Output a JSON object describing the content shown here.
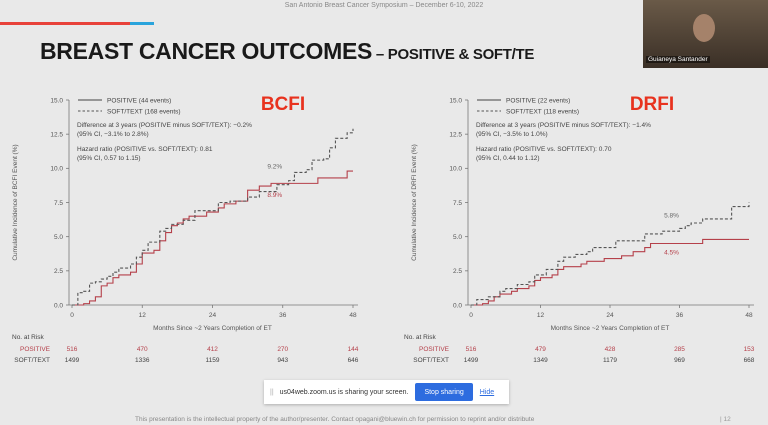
{
  "header": {
    "conference": "San Antonio Breast Cancer Symposium – December 6-10, 2022",
    "title_main": "BREAST CANCER OUTCOMES",
    "title_sub": " – POSITIVE & SOFT/TE"
  },
  "video": {
    "participant": "Guianeya Santander"
  },
  "share_bar": {
    "message": "us04web.zoom.us is sharing your screen.",
    "stop_label": "Stop sharing",
    "hide_label": "Hide"
  },
  "footer": {
    "text": "This presentation is the intellectual property of the author/presenter. Contact opagani@bluewin.ch for permission to reprint and/or distribute",
    "page": "| 12"
  },
  "colors": {
    "positive": "#b5404a",
    "soft": "#555555",
    "label": "#e8321e"
  },
  "chart_data": [
    {
      "type": "line",
      "title": "BCFI",
      "ylabel": "Cumulative Incidence of BCFI Event (%)",
      "xlabel": "Months Since ~2 Years Completion of ET",
      "xlim": [
        0,
        48
      ],
      "ylim": [
        0,
        15
      ],
      "xticks": [
        "0",
        "12",
        "24",
        "36",
        "48"
      ],
      "yticks": [
        "0.0",
        "2.5",
        "5.0",
        "7.5",
        "10.0",
        "12.5",
        "15.0"
      ],
      "legend": [
        "POSITIVE (44 events)",
        "SOFT/TEXT (168 events)"
      ],
      "annotations": [
        "Difference at 3 years (POSITIVE minus SOFT/TEXT): −0.2%",
        "(95% CI, −3.1% to 2.8%)",
        "Hazard ratio (POSITIVE vs. SOFT/TEXT): 0.81",
        "(95% CI, 0.57 to 1.15)"
      ],
      "point_labels": {
        "soft": "9.2%",
        "positive": "8.9%"
      },
      "series": [
        {
          "name": "POSITIVE",
          "style": "solid",
          "x": [
            0,
            2,
            3,
            4,
            5,
            6,
            7,
            8,
            10,
            11,
            12,
            14,
            15,
            16,
            17,
            18,
            19,
            20,
            23,
            25,
            26,
            28,
            30,
            32,
            34,
            42,
            47,
            48
          ],
          "y": [
            0,
            0.1,
            0.3,
            0.6,
            1.4,
            1.6,
            2.0,
            2.2,
            2.4,
            3.0,
            3.8,
            4.0,
            4.7,
            5.3,
            5.8,
            6.0,
            6.3,
            6.5,
            6.8,
            7.1,
            7.4,
            7.6,
            8.4,
            8.7,
            8.9,
            9.3,
            9.8,
            9.8
          ]
        },
        {
          "name": "SOFT/TEXT",
          "style": "dashed",
          "x": [
            0,
            1,
            2,
            3,
            4,
            5,
            6,
            7,
            8,
            10,
            11,
            12,
            13,
            15,
            16,
            17,
            19,
            21,
            25,
            27,
            30,
            32,
            35,
            37,
            38,
            40,
            41,
            43,
            44,
            45,
            47,
            48
          ],
          "y": [
            0,
            0.9,
            1.0,
            1.6,
            1.7,
            1.9,
            2.1,
            2.4,
            2.7,
            3.0,
            3.5,
            4.0,
            4.6,
            5.4,
            5.6,
            5.9,
            6.2,
            6.9,
            7.5,
            7.6,
            7.9,
            8.3,
            8.8,
            9.1,
            9.7,
            9.9,
            10.6,
            10.7,
            11.5,
            12.2,
            12.6,
            12.9
          ]
        }
      ],
      "risk": {
        "header": "No. at Risk",
        "rows": [
          {
            "label": "POSITIVE",
            "values": [
              "516",
              "470",
              "412",
              "270",
              "144"
            ]
          },
          {
            "label": "SOFT/TEXT",
            "values": [
              "1499",
              "1336",
              "1159",
              "943",
              "646"
            ]
          }
        ]
      }
    },
    {
      "type": "line",
      "title": "DRFI",
      "ylabel": "Cumulative Incidence of DRFI Event (%)",
      "xlabel": "Months Since ~2 Years Completion of ET",
      "xlim": [
        0,
        48
      ],
      "ylim": [
        0,
        15
      ],
      "xticks": [
        "0",
        "12",
        "24",
        "36",
        "48"
      ],
      "yticks": [
        "0.0",
        "2.5",
        "5.0",
        "7.5",
        "10.0",
        "12.5",
        "15.0"
      ],
      "legend": [
        "POSITIVE (22 events)",
        "SOFT/TEXT (118 events)"
      ],
      "annotations": [
        "Difference at 3 years (POSITIVE minus SOFT/TEXT): −1.4%",
        "(95% CI, −3.5% to 1.0%)",
        "Hazard ratio (POSITIVE vs. SOFT/TEXT): 0.70",
        "(95% CI, 0.44 to 1.12)"
      ],
      "point_labels": {
        "soft": "5.8%",
        "positive": "4.5%"
      },
      "series": [
        {
          "name": "POSITIVE",
          "style": "solid",
          "x": [
            0,
            2,
            3,
            4,
            5,
            7,
            8,
            10,
            11,
            12,
            14,
            15,
            16,
            19,
            20,
            23,
            26,
            28,
            30,
            31,
            40,
            48
          ],
          "y": [
            0,
            0.1,
            0.3,
            0.6,
            0.8,
            1.0,
            1.2,
            1.4,
            1.8,
            2.0,
            2.2,
            2.6,
            2.8,
            3.0,
            3.2,
            3.4,
            3.6,
            3.9,
            4.2,
            4.5,
            4.8,
            4.8
          ]
        },
        {
          "name": "SOFT/TEXT",
          "style": "dashed",
          "x": [
            0,
            1,
            3,
            5,
            6,
            8,
            10,
            11,
            13,
            15,
            16,
            18,
            20,
            21,
            25,
            30,
            33,
            36,
            37,
            38,
            40,
            45,
            48
          ],
          "y": [
            0,
            0.4,
            0.6,
            1.0,
            1.2,
            1.5,
            1.7,
            2.2,
            2.6,
            3.2,
            3.5,
            3.7,
            3.9,
            4.2,
            4.7,
            5.2,
            5.4,
            5.6,
            5.8,
            6.0,
            6.3,
            7.2,
            7.5
          ]
        }
      ],
      "risk": {
        "header": "No. at Risk",
        "rows": [
          {
            "label": "POSITIVE",
            "values": [
              "516",
              "479",
              "428",
              "285",
              "153"
            ]
          },
          {
            "label": "SOFT/TEXT",
            "values": [
              "1499",
              "1349",
              "1179",
              "969",
              "668"
            ]
          }
        ]
      }
    }
  ]
}
